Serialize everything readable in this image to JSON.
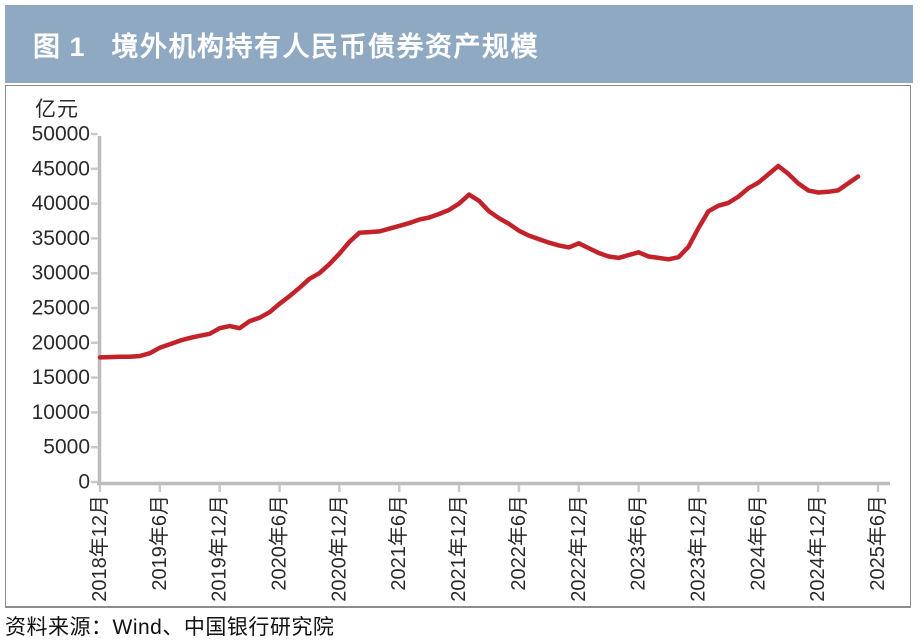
{
  "figure": {
    "label": "图 1",
    "title": "境外机构持有人民币债券资产规模"
  },
  "source_note": "资料来源：Wind、中国银行研究院",
  "colors": {
    "header_bg": "#90A9C3",
    "header_text": "#FFFFFF",
    "line": "#C2232B",
    "axis": "#BDBDBD",
    "tick": "#C9C9C9",
    "label_text": "#2A2A2A",
    "panel_border": "#8D8D8D"
  },
  "chart_data": {
    "type": "line",
    "title": "境外机构持有人民币债券资产规模",
    "series_name": "境外机构持有人民币债券资产规模",
    "unit_label": "亿元",
    "ylabel": "亿元",
    "xlabel": "",
    "ylim": [
      0,
      50000
    ],
    "grid": false,
    "legend": "none",
    "y_ticks": [
      0,
      5000,
      10000,
      15000,
      20000,
      25000,
      30000,
      35000,
      40000,
      45000,
      50000
    ],
    "x_tick_labels": [
      "2018年12月",
      "2019年6月",
      "2019年12月",
      "2020年6月",
      "2020年12月",
      "2021年6月",
      "2021年12月",
      "2022年6月",
      "2022年12月",
      "2023年6月",
      "2023年12月",
      "2024年6月",
      "2024年12月",
      "2025年6月"
    ],
    "months": [
      "2018-12",
      "2019-01",
      "2019-02",
      "2019-03",
      "2019-04",
      "2019-05",
      "2019-06",
      "2019-07",
      "2019-08",
      "2019-09",
      "2019-10",
      "2019-11",
      "2019-12",
      "2020-01",
      "2020-02",
      "2020-03",
      "2020-04",
      "2020-05",
      "2020-06",
      "2020-07",
      "2020-08",
      "2020-09",
      "2020-10",
      "2020-11",
      "2020-12",
      "2021-01",
      "2021-02",
      "2021-03",
      "2021-04",
      "2021-05",
      "2021-06",
      "2021-07",
      "2021-08",
      "2021-09",
      "2021-10",
      "2021-11",
      "2021-12",
      "2022-01",
      "2022-02",
      "2022-03",
      "2022-04",
      "2022-05",
      "2022-06",
      "2022-07",
      "2022-08",
      "2022-09",
      "2022-10",
      "2022-11",
      "2022-12",
      "2023-01",
      "2023-02",
      "2023-03",
      "2023-04",
      "2023-05",
      "2023-06",
      "2023-07",
      "2023-08",
      "2023-09",
      "2023-10",
      "2023-11",
      "2023-12",
      "2024-01",
      "2024-02",
      "2024-03",
      "2024-04",
      "2024-05",
      "2024-06",
      "2024-07",
      "2024-08",
      "2024-09",
      "2024-10",
      "2024-11",
      "2024-12",
      "2025-01",
      "2025-02",
      "2025-03",
      "2025-04"
    ],
    "values": [
      17900,
      17950,
      18000,
      18000,
      18100,
      18500,
      19300,
      19800,
      20300,
      20700,
      21000,
      21300,
      22100,
      22400,
      22100,
      23100,
      23600,
      24400,
      25600,
      26700,
      27900,
      29200,
      30000,
      31300,
      32800,
      34500,
      35800,
      35900,
      36000,
      36400,
      36800,
      37200,
      37700,
      38000,
      38500,
      39100,
      40000,
      41300,
      40400,
      38900,
      37900,
      37100,
      36100,
      35400,
      34900,
      34400,
      34000,
      33700,
      34300,
      33600,
      32900,
      32400,
      32200,
      32600,
      33000,
      32400,
      32200,
      32000,
      32300,
      33800,
      36500,
      38900,
      39700,
      40100,
      41000,
      42200,
      43000,
      44200,
      45400,
      44300,
      42900,
      41900,
      41600,
      41700,
      41900,
      42900,
      43900
    ]
  }
}
